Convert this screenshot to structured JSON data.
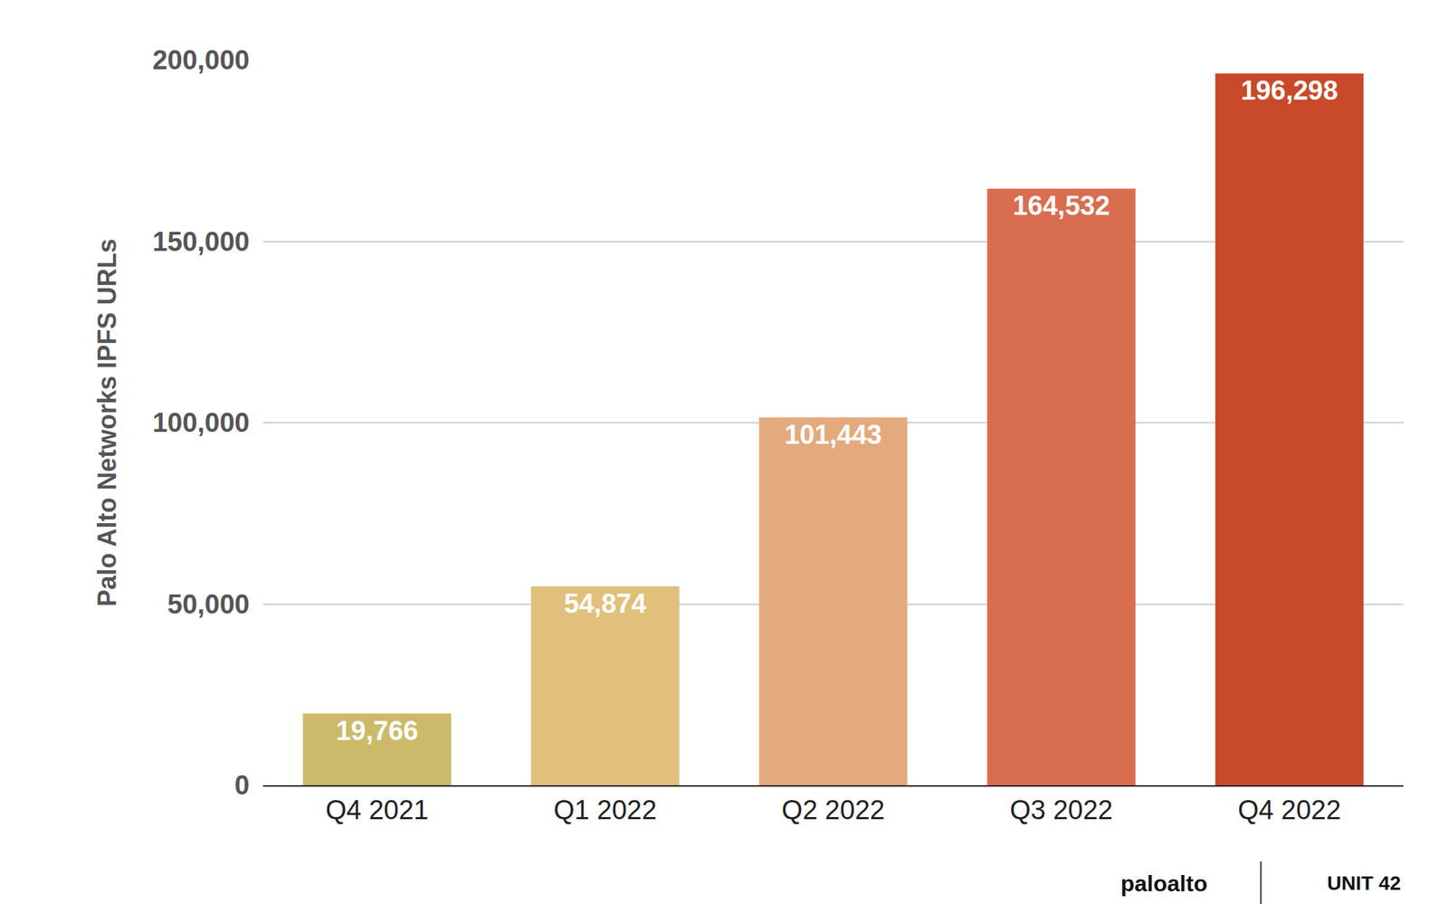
{
  "chart_data": {
    "type": "bar",
    "y_label": "Palo Alto Networks IPFS URLs",
    "categories": [
      "Q4 2021",
      "Q1 2022",
      "Q2 2022",
      "Q3 2022",
      "Q4 2022"
    ],
    "values": [
      19766,
      54874,
      101443,
      164532,
      196298
    ],
    "value_labels": [
      "19,766",
      "54,874",
      "101,443",
      "164,532",
      "196,298"
    ],
    "colors": [
      "#CCBA6A",
      "#E1BF7C",
      "#E3AA7E",
      "#D96D50",
      "#C84A2A"
    ],
    "ylim": [
      0,
      200000
    ],
    "yticks": [
      0,
      {
        "value": 50000,
        "label": "50,000"
      },
      {
        "value": 100000,
        "label": "100,000"
      },
      {
        "value": 150000,
        "label": "150,000"
      },
      {
        "value": 200000,
        "label": "200,000"
      }
    ],
    "grid": true,
    "data_labels": true,
    "annotations": [
      "paloalto",
      "UNIT 42"
    ]
  }
}
